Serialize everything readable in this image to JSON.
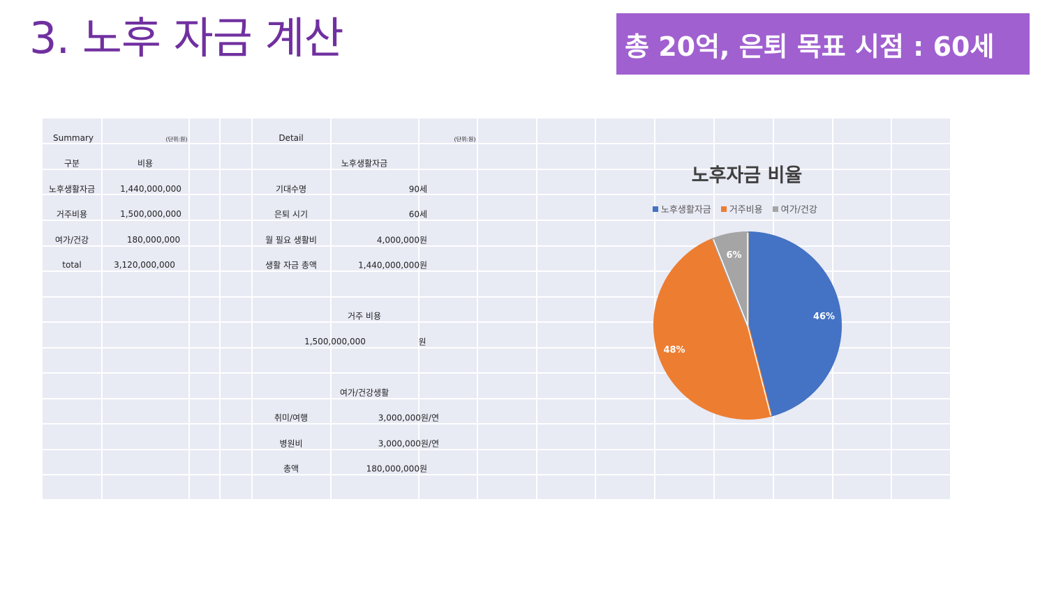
{
  "slide": {
    "title": "3. 노후 자금 계산",
    "banner": "총 20억, 은퇴 목표 시점  : 60세"
  },
  "summary": {
    "header": "Summary",
    "unit": "(단위:원)",
    "col1": "구분",
    "col2": "비용",
    "rows": [
      {
        "label": "노후생활자금",
        "value": "1,440,000,000"
      },
      {
        "label": "거주비용",
        "value": "1,500,000,000"
      },
      {
        "label": "여가/건강",
        "value": "180,000,000"
      },
      {
        "label": "total",
        "value": "3,120,000,000"
      }
    ]
  },
  "detail": {
    "header": "Detail",
    "unit": "(단위:원)",
    "living": {
      "title": "노후생활자금",
      "rows": [
        {
          "label": "기대수명",
          "value": "90세"
        },
        {
          "label": "은퇴 시기",
          "value": "60세"
        },
        {
          "label": "월 필요 생활비",
          "value": "4,000,000원"
        },
        {
          "label": "생활 자금 총액",
          "value": "1,440,000,000원"
        }
      ]
    },
    "housing": {
      "title": "거주 비용",
      "value": "1,500,000,000",
      "unit": "원"
    },
    "leisure": {
      "title": "여가/건강생활",
      "rows": [
        {
          "label": "취미/여행",
          "value": "3,000,000원/연"
        },
        {
          "label": "병원비",
          "value": "3,000,000원/연"
        },
        {
          "label": "총액",
          "value": "180,000,000원"
        }
      ]
    }
  },
  "chart_data": {
    "type": "pie",
    "title": "노후자금 비율",
    "legend_position": "top",
    "series": [
      {
        "name": "노후생활자금",
        "value": 46,
        "label": "46%",
        "color": "#4472c4"
      },
      {
        "name": "거주비용",
        "value": 48,
        "label": "48%",
        "color": "#ed7d31"
      },
      {
        "name": "여가/건강",
        "value": 6,
        "label": "6%",
        "color": "#a5a5a5"
      }
    ]
  }
}
